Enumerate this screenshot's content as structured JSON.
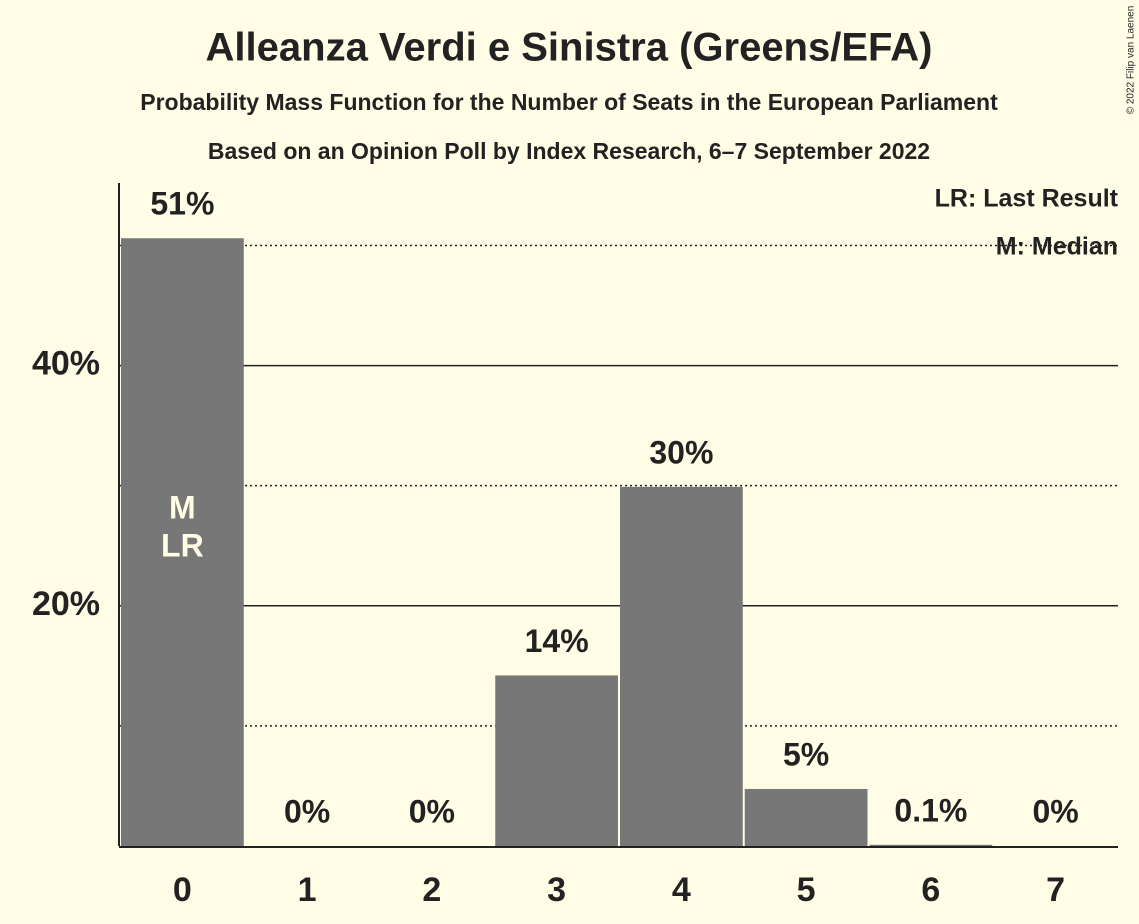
{
  "chart_data": {
    "type": "bar",
    "title": "Alleanza Verdi e Sinistra (Greens/EFA)",
    "subtitle": "Probability Mass Function for the Number of Seats in the European Parliament",
    "source": "Based on an Opinion Poll by Index Research, 6–7 September 2022",
    "copyright": "© 2022 Filip van Laenen",
    "categories": [
      "0",
      "1",
      "2",
      "3",
      "4",
      "5",
      "6",
      "7"
    ],
    "values": [
      50.6,
      0,
      0,
      14.2,
      29.9,
      4.75,
      0.1,
      0
    ],
    "value_labels": [
      "51%",
      "0%",
      "0%",
      "14%",
      "30%",
      "5%",
      "0.1%",
      "0%"
    ],
    "color": "#777777",
    "ylim": [
      0,
      55.2
    ],
    "yticks": [
      {
        "value": 20,
        "label": "20%"
      },
      {
        "value": 40,
        "label": "40%"
      }
    ],
    "minor_yticks": [
      10,
      30,
      50
    ],
    "grid": true,
    "median": "0",
    "last_result": "0",
    "median_label": "M",
    "last_result_label": "LR",
    "legend": [
      "LR: Last Result",
      "M: Median"
    ],
    "legend_position": "top-right"
  }
}
